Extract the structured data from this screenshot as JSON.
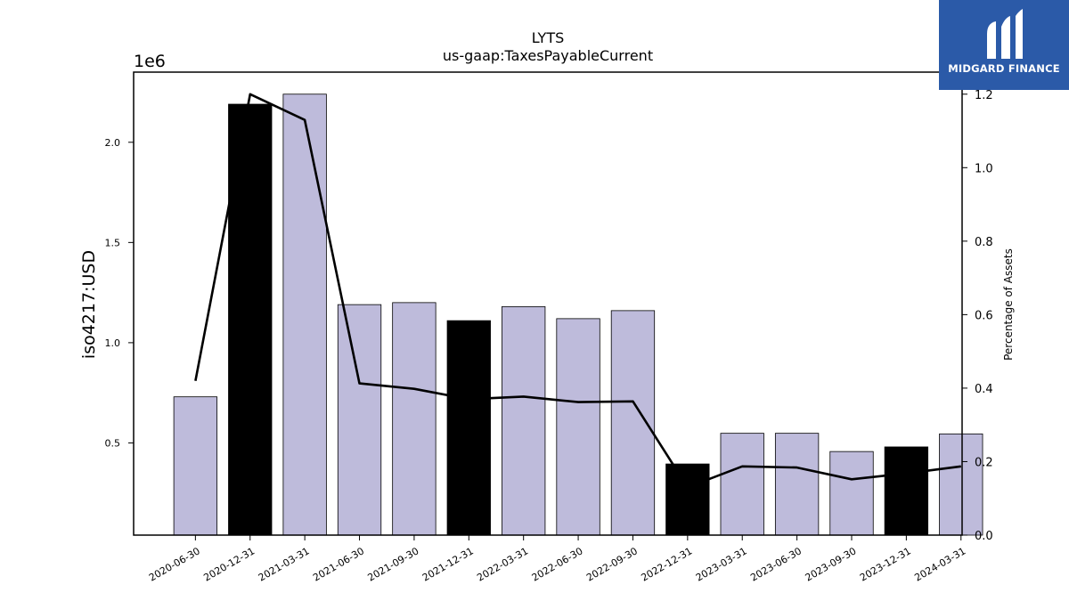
{
  "chart_data": {
    "type": "bar",
    "title": "LYTS",
    "subtitle": "us-gaap:TaxesPayableCurrent",
    "ylabel": "iso4217:USD",
    "y2label": "Percentage of Assets",
    "offset_label": "1e6",
    "categories": [
      "2020-06-30",
      "2020-12-31",
      "2021-03-31",
      "2021-06-30",
      "2021-09-30",
      "2021-12-31",
      "2022-03-31",
      "2022-06-30",
      "2022-09-30",
      "2022-12-31",
      "2023-03-31",
      "2023-06-30",
      "2023-09-30",
      "2023-12-31",
      "2024-03-31"
    ],
    "series": [
      {
        "type": "bar",
        "values": [
          730000,
          2190000,
          2240000,
          1190000,
          1200000,
          1110000,
          1180000,
          1120000,
          1160000,
          395000,
          548000,
          548000,
          457000,
          480000,
          545000
        ],
        "highlight": [
          false,
          true,
          false,
          false,
          false,
          true,
          false,
          false,
          false,
          true,
          false,
          false,
          false,
          true,
          false
        ]
      },
      {
        "type": "line",
        "axis": "right",
        "values": [
          0.42,
          1.2,
          1.13,
          0.413,
          0.398,
          0.37,
          0.377,
          0.362,
          0.364,
          0.13,
          0.187,
          0.184,
          0.152,
          0.168,
          0.187
        ]
      }
    ],
    "ylim": [
      40000,
      2350000
    ],
    "y_ticks": [
      0.5,
      1.0,
      1.5,
      2.0
    ],
    "y_tick_labels": [
      "0.5",
      "1.0",
      "1.5",
      "2.0"
    ],
    "y2lim": [
      0,
      1.26
    ],
    "y2_ticks": [
      0,
      0.2,
      0.4,
      0.6,
      0.8,
      1.0,
      1.2
    ],
    "y2_tick_labels": [
      "0.0",
      "0.2",
      "0.4",
      "0.6",
      "0.8",
      "1.0",
      "1.2"
    ],
    "grid": false,
    "colors": {
      "bar": "#bebbdb",
      "bar_highlight": "#000000",
      "line": "#000000"
    }
  },
  "logo": {
    "text": "MIDGARD FINANCE",
    "color": "#2b5aa8"
  }
}
